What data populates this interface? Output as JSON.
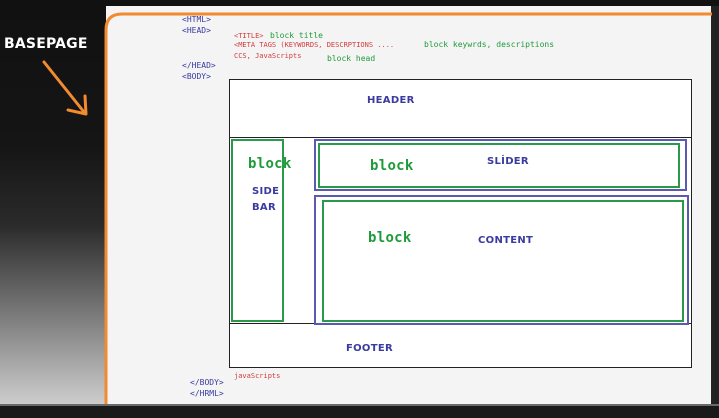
{
  "title_label": "BASEPAGE",
  "code": {
    "html_open": "<HTML>",
    "head_open": "<HEAD>",
    "title_tag": "<TITLE>",
    "title_note": "block  title",
    "meta_tags": "<META TAGS (KEYWORDS, DESCRPTIONS ....",
    "meta_note": "block keywrds, descriptions",
    "ccs_js": "CCS, JavaScripts",
    "head_note": "block head",
    "head_close": "</HEAD>",
    "body_open": "<BODY>",
    "javascripts": "javaScripts",
    "body_close": "</BODY>",
    "hrml_close": "</HRML>"
  },
  "layout": {
    "header": "HEADER",
    "slider": "SLİDER",
    "side_bar_line1": "SIDE",
    "side_bar_line2": "BAR",
    "content": "CONTENT",
    "footer": "FOOTER",
    "block_sidebar": "block",
    "block_slider": "block",
    "block_content": "block"
  },
  "colors": {
    "orange": "#f28a30",
    "blue_text": "#3a3aa0",
    "green_text": "#1f9a3a",
    "red_text": "#d23b3b"
  }
}
